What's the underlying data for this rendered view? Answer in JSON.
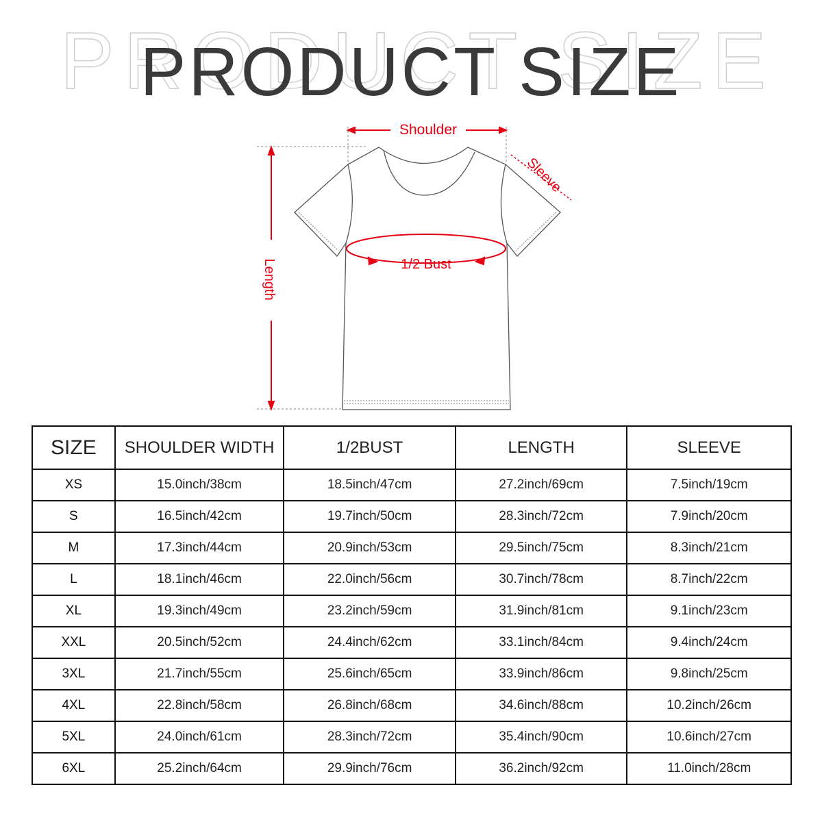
{
  "title": "PRODUCT SIZE",
  "diagram": {
    "labels": {
      "shoulder": "Shoulder",
      "sleeve": "Sleeve",
      "bust": "1/2 Bust",
      "length": "Length"
    },
    "accent_color": "#e60012"
  },
  "table": {
    "headers": [
      "SIZE",
      "SHOULDER WIDTH",
      "1/2BUST",
      "LENGTH",
      "SLEEVE"
    ],
    "rows": [
      [
        "XS",
        "15.0inch/38cm",
        "18.5inch/47cm",
        "27.2inch/69cm",
        "7.5inch/19cm"
      ],
      [
        "S",
        "16.5inch/42cm",
        "19.7inch/50cm",
        "28.3inch/72cm",
        "7.9inch/20cm"
      ],
      [
        "M",
        "17.3inch/44cm",
        "20.9inch/53cm",
        "29.5inch/75cm",
        "8.3inch/21cm"
      ],
      [
        "L",
        "18.1inch/46cm",
        "22.0inch/56cm",
        "30.7inch/78cm",
        "8.7inch/22cm"
      ],
      [
        "XL",
        "19.3inch/49cm",
        "23.2inch/59cm",
        "31.9inch/81cm",
        "9.1inch/23cm"
      ],
      [
        "XXL",
        "20.5inch/52cm",
        "24.4inch/62cm",
        "33.1inch/84cm",
        "9.4inch/24cm"
      ],
      [
        "3XL",
        "21.7inch/55cm",
        "25.6inch/65cm",
        "33.9inch/86cm",
        "9.8inch/25cm"
      ],
      [
        "4XL",
        "22.8inch/58cm",
        "26.8inch/68cm",
        "34.6inch/88cm",
        "10.2inch/26cm"
      ],
      [
        "5XL",
        "24.0inch/61cm",
        "28.3inch/72cm",
        "35.4inch/90cm",
        "10.6inch/27cm"
      ],
      [
        "6XL",
        "25.2inch/64cm",
        "29.9inch/76cm",
        "36.2inch/92cm",
        "11.0inch/28cm"
      ]
    ]
  }
}
